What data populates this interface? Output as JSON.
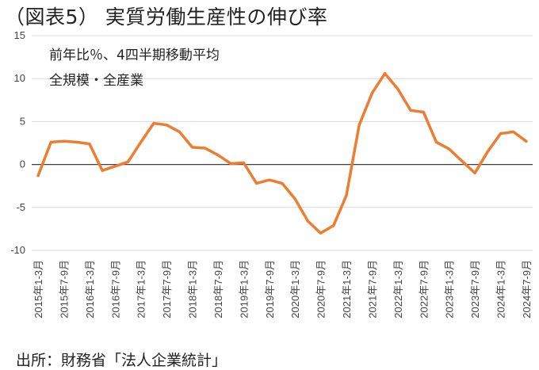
{
  "title": "（図表5） 実質労働生産性の伸び率",
  "source": "出所：財務省「法人企業統計」",
  "chart_data": {
    "type": "line",
    "annotations": [
      "前年比％、4四半期移動平均",
      "全規模・全産業"
    ],
    "categories": [
      "2015年1-3月",
      "2015年4-6月",
      "2015年7-9月",
      "2015年10-12月",
      "2016年1-3月",
      "2016年4-6月",
      "2016年7-9月",
      "2016年10-12月",
      "2017年1-3月",
      "2017年4-6月",
      "2017年7-9月",
      "2017年10-12月",
      "2018年1-3月",
      "2018年4-6月",
      "2018年7-9月",
      "2018年10-12月",
      "2019年1-3月",
      "2019年4-6月",
      "2019年7-9月",
      "2019年10-12月",
      "2020年1-3月",
      "2020年4-6月",
      "2020年7-9月",
      "2020年10-12月",
      "2021年1-3月",
      "2021年4-6月",
      "2021年7-9月",
      "2021年10-12月",
      "2022年1-3月",
      "2022年4-6月",
      "2022年7-9月",
      "2022年10-12月",
      "2023年1-3月",
      "2023年4-6月",
      "2023年7-9月",
      "2023年10-12月",
      "2024年1-3月",
      "2024年4-6月",
      "2024年7-9月"
    ],
    "tick_labels": [
      "2015年1-3月",
      "2015年7-9月",
      "2016年1-3月",
      "2016年7-9月",
      "2017年1-3月",
      "2017年7-9月",
      "2018年1-3月",
      "2018年7-9月",
      "2019年1-3月",
      "2019年7-9月",
      "2020年1-3月",
      "2020年7-9月",
      "2021年1-3月",
      "2021年7-9月",
      "2022年1-3月",
      "2022年7-9月",
      "2023年1-3月",
      "2023年7-9月",
      "2024年1-3月",
      "2024年7-9月"
    ],
    "values": [
      -1.3,
      2.6,
      2.7,
      2.6,
      2.4,
      -0.7,
      -0.2,
      0.3,
      2.6,
      4.8,
      4.6,
      3.8,
      2.0,
      1.9,
      1.1,
      0.1,
      0.2,
      -2.2,
      -1.8,
      -2.2,
      -4.0,
      -6.6,
      -8.0,
      -7.1,
      -3.6,
      4.6,
      8.3,
      10.6,
      8.8,
      6.3,
      6.1,
      2.6,
      1.8,
      0.4,
      -1.0,
      1.5,
      3.6,
      3.8,
      2.7
    ],
    "ylim": [
      -10,
      15
    ],
    "yticks": [
      -10,
      -5,
      0,
      5,
      10,
      15
    ],
    "grid": true,
    "line_color": "#ed7d31",
    "zero_line_color": "#404040",
    "grid_color": "#d9d9d9"
  }
}
